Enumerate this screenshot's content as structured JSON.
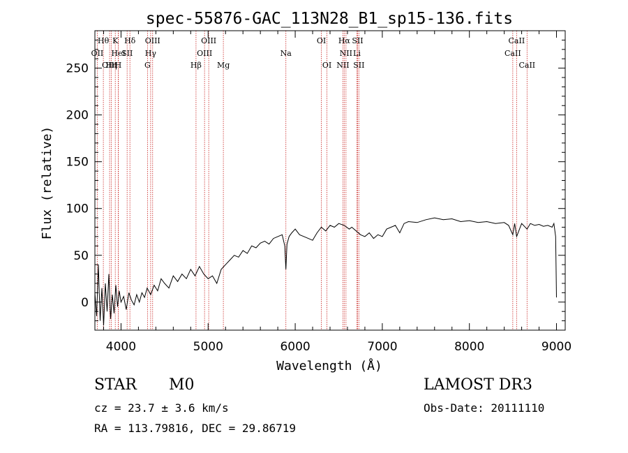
{
  "chart_data": {
    "type": "line",
    "title": "spec-55876-GAC_113N28_B1_sp15-136.fits",
    "xlabel": "Wavelength (Å)",
    "ylabel": "Flux (relative)",
    "xlim": [
      3700,
      9100
    ],
    "ylim": [
      -30,
      290
    ],
    "x_ticks": [
      4000,
      5000,
      6000,
      7000,
      8000,
      9000
    ],
    "y_ticks": [
      0,
      50,
      100,
      150,
      200,
      250
    ],
    "x_tick_labels": [
      "4000",
      "5000",
      "6000",
      "7000",
      "8000",
      "9000"
    ],
    "y_tick_labels": [
      "0",
      "50",
      "100",
      "150",
      "200",
      "250"
    ],
    "grid": false,
    "series": [
      {
        "name": "spectrum",
        "x": [
          3700,
          3720,
          3740,
          3760,
          3780,
          3800,
          3820,
          3840,
          3860,
          3880,
          3900,
          3920,
          3940,
          3960,
          3980,
          4000,
          4030,
          4060,
          4090,
          4120,
          4150,
          4180,
          4210,
          4240,
          4270,
          4300,
          4340,
          4380,
          4420,
          4460,
          4500,
          4550,
          4600,
          4650,
          4700,
          4750,
          4800,
          4850,
          4900,
          4950,
          5000,
          5050,
          5100,
          5150,
          5200,
          5250,
          5300,
          5350,
          5400,
          5450,
          5500,
          5550,
          5600,
          5650,
          5700,
          5750,
          5800,
          5850,
          5880,
          5893,
          5906,
          5930,
          5960,
          6000,
          6050,
          6100,
          6150,
          6200,
          6250,
          6300,
          6350,
          6400,
          6450,
          6500,
          6563,
          6620,
          6650,
          6700,
          6750,
          6800,
          6850,
          6900,
          6950,
          7000,
          7050,
          7100,
          7150,
          7200,
          7250,
          7300,
          7400,
          7500,
          7600,
          7700,
          7800,
          7900,
          8000,
          8100,
          8200,
          8300,
          8400,
          8450,
          8498,
          8520,
          8542,
          8600,
          8662,
          8700,
          8750,
          8800,
          8850,
          8900,
          8950,
          8970,
          8990,
          9000
        ],
        "y": [
          10,
          -15,
          40,
          -20,
          15,
          -25,
          20,
          -10,
          30,
          -18,
          8,
          -12,
          18,
          -5,
          12,
          0,
          6,
          -8,
          10,
          2,
          -3,
          8,
          0,
          10,
          5,
          15,
          8,
          18,
          12,
          25,
          20,
          15,
          28,
          22,
          30,
          25,
          35,
          28,
          38,
          30,
          25,
          28,
          20,
          35,
          40,
          45,
          50,
          48,
          55,
          52,
          60,
          58,
          63,
          65,
          62,
          68,
          70,
          72,
          60,
          35,
          62,
          70,
          74,
          78,
          72,
          70,
          68,
          66,
          74,
          80,
          76,
          82,
          80,
          84,
          82,
          78,
          80,
          76,
          72,
          70,
          74,
          68,
          72,
          70,
          78,
          80,
          82,
          74,
          84,
          86,
          85,
          88,
          90,
          88,
          89,
          86,
          87,
          85,
          86,
          84,
          85,
          82,
          72,
          84,
          70,
          84,
          78,
          84,
          82,
          83,
          81,
          82,
          80,
          84,
          70,
          5
        ]
      }
    ],
    "line_markers": [
      {
        "label": "Hθ",
        "wavelength": 3797,
        "row": 1
      },
      {
        "label": "OII",
        "wavelength": 3727,
        "row": 2
      },
      {
        "label": "OIII",
        "wavelength": 3869,
        "row": 3
      },
      {
        "label": "Hη",
        "wavelength": 3889,
        "row": 3
      },
      {
        "label": "K",
        "wavelength": 3934,
        "row": 1
      },
      {
        "label": "HeI",
        "wavelength": 3970,
        "row": 2
      },
      {
        "label": "H",
        "wavelength": 3968,
        "row": 3
      },
      {
        "label": "Hδ",
        "wavelength": 4102,
        "row": 1
      },
      {
        "label": "SII",
        "wavelength": 4070,
        "row": 2
      },
      {
        "label": "OIII",
        "wavelength": 4363,
        "row": 1
      },
      {
        "label": "Hγ",
        "wavelength": 4340,
        "row": 2
      },
      {
        "label": "G",
        "wavelength": 4304,
        "row": 3
      },
      {
        "label": "Hβ",
        "wavelength": 4861,
        "row": 3
      },
      {
        "label": "OIII",
        "wavelength": 5007,
        "row": 1
      },
      {
        "label": "OIII",
        "wavelength": 4959,
        "row": 2
      },
      {
        "label": "Mg",
        "wavelength": 5175,
        "row": 3
      },
      {
        "label": "Na",
        "wavelength": 5893,
        "row": 2
      },
      {
        "label": "OI",
        "wavelength": 6300,
        "row": 1
      },
      {
        "label": "OI",
        "wavelength": 6364,
        "row": 3
      },
      {
        "label": "Hα",
        "wavelength": 6563,
        "row": 1
      },
      {
        "label": "NII",
        "wavelength": 6583,
        "row": 2
      },
      {
        "label": "NII",
        "wavelength": 6548,
        "row": 3
      },
      {
        "label": "SII",
        "wavelength": 6716,
        "row": 1
      },
      {
        "label": "Li",
        "wavelength": 6708,
        "row": 2
      },
      {
        "label": "SII",
        "wavelength": 6731,
        "row": 3
      },
      {
        "label": "CaII",
        "wavelength": 8542,
        "row": 1
      },
      {
        "label": "CaII",
        "wavelength": 8498,
        "row": 2
      },
      {
        "label": "CaII",
        "wavelength": 8662,
        "row": 3
      }
    ]
  },
  "info": {
    "class": "STAR",
    "subclass": "M0",
    "survey": "LAMOST DR3",
    "cz": "cz = 23.7 ± 3.6 km/s",
    "obs_date": "Obs-Date: 20111110",
    "coords": "RA = 113.79816, DEC =  29.86719"
  }
}
